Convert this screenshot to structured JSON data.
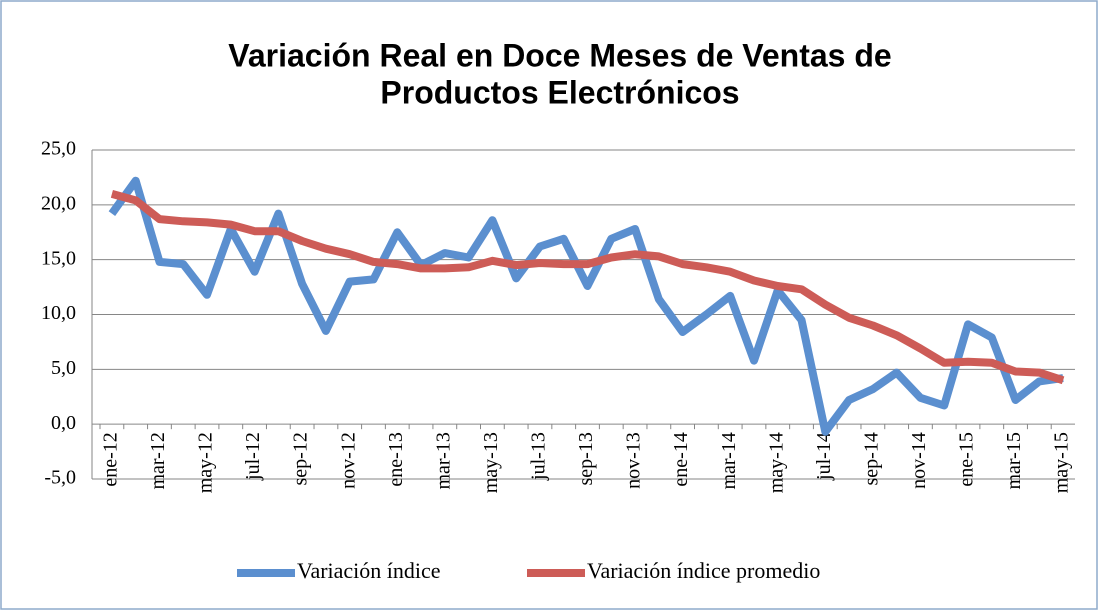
{
  "chart_data": {
    "type": "line",
    "title": [
      "Variación Real en Doce Meses de Ventas de",
      "Productos Electrónicos"
    ],
    "categories": [
      "ene-12",
      null,
      "mar-12",
      null,
      "may-12",
      null,
      "jul-12",
      null,
      "sep-12",
      null,
      "nov-12",
      null,
      "ene-13",
      null,
      "mar-13",
      null,
      "may-13",
      null,
      "jul-13",
      null,
      "sep-13",
      null,
      "nov-13",
      null,
      "ene-14",
      null,
      "mar-14",
      null,
      "may-14",
      null,
      "jul-14",
      null,
      "sep-14",
      null,
      "nov-14",
      null,
      "ene-15",
      null,
      "mar-15",
      null,
      "may-15"
    ],
    "series": [
      {
        "name": "Variación índice",
        "color": "#5b8fcf",
        "values": [
          19.2,
          22.2,
          14.8,
          14.6,
          11.8,
          17.8,
          13.9,
          19.2,
          12.8,
          8.5,
          13.0,
          13.2,
          17.5,
          14.5,
          15.6,
          15.2,
          18.6,
          13.3,
          16.2,
          16.9,
          12.6,
          16.9,
          17.8,
          11.4,
          8.4,
          10.0,
          11.7,
          5.8,
          12.2,
          9.5,
          -0.7,
          2.2,
          3.2,
          4.7,
          2.4,
          1.7,
          9.1,
          7.9,
          2.2,
          3.9,
          4.2
        ]
      },
      {
        "name": "Variación índice promedio",
        "color": "#cd5c57",
        "values": [
          21.0,
          20.4,
          18.7,
          18.5,
          18.4,
          18.2,
          17.6,
          17.6,
          16.7,
          16.0,
          15.5,
          14.8,
          14.6,
          14.2,
          14.2,
          14.3,
          14.9,
          14.5,
          14.7,
          14.6,
          14.6,
          15.2,
          15.5,
          15.3,
          14.6,
          14.3,
          13.9,
          13.1,
          12.6,
          12.3,
          10.9,
          9.7,
          9.0,
          8.1,
          6.9,
          5.6,
          5.7,
          5.6,
          4.8,
          4.7,
          4.0
        ]
      }
    ],
    "ylim": [
      -5,
      25
    ],
    "yticks": [
      {
        "value": -5,
        "label": "-5,0"
      },
      {
        "value": 0,
        "label": "0,0"
      },
      {
        "value": 5,
        "label": "5,0"
      },
      {
        "value": 10,
        "label": "10,0"
      },
      {
        "value": 15,
        "label": "15,0"
      },
      {
        "value": 20,
        "label": "20,0"
      },
      {
        "value": 25,
        "label": "25,0"
      }
    ],
    "grid": true,
    "legend": "bottom"
  }
}
